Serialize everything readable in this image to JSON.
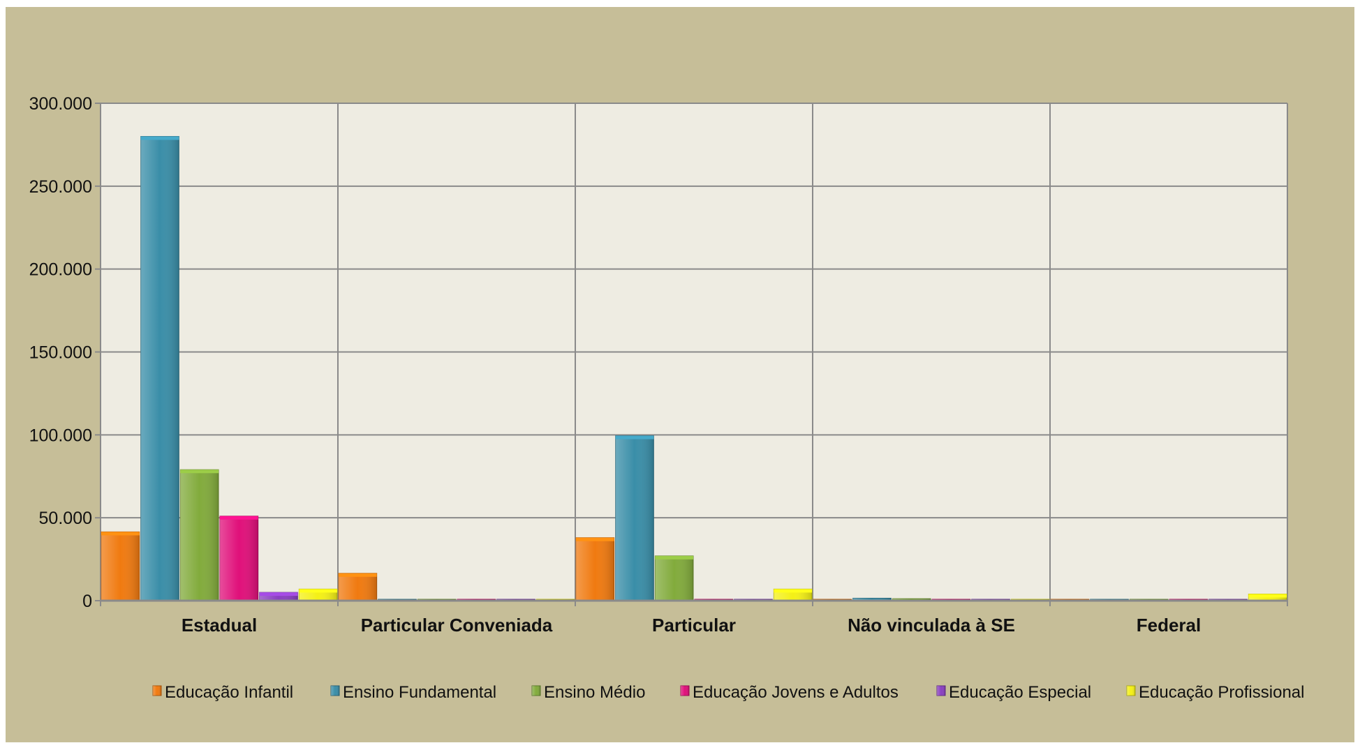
{
  "chart_data": {
    "type": "bar",
    "categories": [
      "Estadual",
      "Particular Conveniada",
      "Particular",
      "Não vinculada à SE",
      "Federal"
    ],
    "series": [
      {
        "name": "Educação Infantil",
        "color": "#f07a10",
        "values": [
          41500,
          16500,
          38000,
          200,
          100
        ]
      },
      {
        "name": "Ensino Fundamental",
        "color": "#3a8ea8",
        "values": [
          280000,
          100,
          99500,
          1500,
          300
        ]
      },
      {
        "name": "Ensino Médio",
        "color": "#82ab3c",
        "values": [
          79000,
          100,
          27000,
          1200,
          700
        ]
      },
      {
        "name": "Educação Jovens e Adultos",
        "color": "#e0107a",
        "values": [
          51000,
          100,
          100,
          100,
          100
        ]
      },
      {
        "name": "Educação Especial",
        "color": "#8a3fc0",
        "values": [
          5000,
          800,
          200,
          100,
          100
        ]
      },
      {
        "name": "Educação Profissional",
        "color": "#f4f016",
        "values": [
          7000,
          100,
          7000,
          100,
          4000
        ]
      }
    ],
    "y_ticks": [
      "0",
      "50.000",
      "100.000",
      "150.000",
      "200.000",
      "250.000",
      "300.000"
    ],
    "ylim": [
      0,
      300000
    ],
    "grid": true,
    "legend_position": "bottom"
  }
}
